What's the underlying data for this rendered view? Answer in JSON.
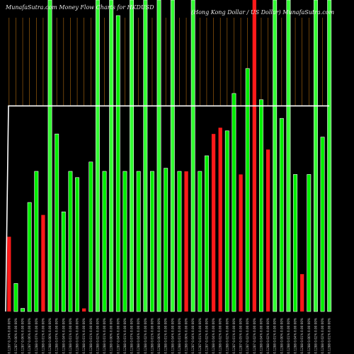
{
  "header": {
    "left_title": "MunafaSutra.com Money Flow Charts for HKDUSD",
    "right_title": "(Hong Kong Dollar / US Dollar) MunafaSutra.com"
  },
  "colors": {
    "background": "#000000",
    "up": "#00ee00",
    "up_highlight": "#33ff33",
    "down": "#ff1a1a",
    "price_line": "#ffffff",
    "grid_line": "#b06a10"
  },
  "chart_data": {
    "type": "bar",
    "title": "",
    "xlabel": "",
    "ylabel": "",
    "ylim": [
      0,
      100
    ],
    "categories": [
      "0.1287 0.24% 0.00 00%",
      "0.1287 0.00% 0.00 00%",
      "0.1287 0.06% 0.00 00%",
      "0.1287 0.06% 0.00 00%",
      "0.1288 0.07% 0.00 00%",
      "0.1288 0.01% 0.00 00%",
      "0.1288 0.00% 0.00 00%",
      "0.1288 0.07% 0.00 00%",
      "0.1288 0.04% 0.00 00%",
      "0.1288 0.01% 0.00 00%",
      "0.1288 0.02% 0.00 00%",
      "0.1288 0.01% 0.00 00%",
      "0.1288 0.01% 0.00 00%",
      "0.1288 0.02% 0.00 00%",
      "0.1288 0.01% 0.00 00%",
      "0.1288 0.00% 0.00 00%",
      "0.1287 0.04% 0.00 00%",
      "0.1288 0.01% 0.00 00%",
      "0.1288 0.07% 0.00 00%",
      "0.1288 0.04% 0.00 00%",
      "0.1288 0.02% 0.00 00%",
      "0.1288 0.01% 0.00 00%",
      "0.1288 0.00% 0.00 00%",
      "0.1288 0.01% 0.00 00%",
      "0.1288 0.04% 0.00 00%",
      "0.1288 0.01% 0.00 00%",
      "0.1288 0.00% 0.00 00%",
      "0.1287 0.04% 0.00 00%",
      "0.1287 0.01% 0.00 00%",
      "0.1287 0.02% 0.00 00%",
      "0.1288 0.04% 0.00 00%",
      "0.1288 0.02% 0.00 00%",
      "0.1288 0.02% 0.00 00%",
      "0.1287 0.01% 0.00 00%",
      "0.1287 0.05% 0.00 00%",
      "0.1287 0.02% 0.00 00%",
      "0.1287 0.02% 0.00 00%",
      "0.1288 0.04% 0.00 00%",
      "0.1288 0.02% 0.00 00%",
      "0.1288 0.01% 0.00 00%",
      "0.1288 0.00% 0.00 00%",
      "0.1288 0.01% 0.00 00%",
      "0.1288 0.04% 0.00 00%",
      "0.1288 0.01% 0.00 00%",
      "0.1288 0.00% 0.00 00%",
      "0.1288 0.02% 0.00 00%",
      "0.1288 0.02% 0.00 00%",
      "0.1288 0.01% 0.00 00%"
    ],
    "colors": [
      "red",
      "green",
      "green",
      "green",
      "green",
      "red",
      "green",
      "green",
      "green",
      "green",
      "green",
      "red",
      "green",
      "green",
      "green",
      "green",
      "green",
      "green",
      "green",
      "green",
      "green",
      "green",
      "green",
      "green",
      "green",
      "green",
      "red",
      "green",
      "green",
      "green",
      "red",
      "red",
      "green",
      "green",
      "red",
      "green",
      "red",
      "green",
      "red",
      "green",
      "green",
      "green",
      "green",
      "red",
      "green",
      "green",
      "green",
      "green"
    ],
    "values": [
      24,
      9,
      1,
      35,
      45,
      31,
      45,
      57,
      32,
      45,
      43,
      1,
      48,
      45,
      45,
      42,
      95,
      45,
      45,
      45,
      45,
      45,
      45,
      46,
      45,
      45,
      45,
      45,
      45,
      50,
      57,
      59,
      58,
      70,
      44,
      78,
      44,
      68,
      52,
      49,
      62,
      48,
      44,
      12,
      44,
      43,
      56,
      6
    ],
    "tall": [
      false,
      false,
      false,
      false,
      false,
      false,
      true,
      false,
      false,
      false,
      false,
      false,
      false,
      true,
      false,
      true,
      false,
      false,
      true,
      false,
      true,
      false,
      true,
      false,
      true,
      false,
      false,
      true,
      false,
      false,
      false,
      false,
      false,
      false,
      false,
      false,
      true,
      false,
      false,
      true,
      false,
      true,
      false,
      false,
      false,
      true,
      false,
      true
    ],
    "price_line": [
      66,
      66,
      66,
      66,
      66,
      66,
      66,
      66,
      66,
      66,
      66,
      66,
      66,
      66,
      66,
      66,
      66,
      66,
      66,
      66,
      66,
      66,
      66,
      66,
      66,
      66,
      66,
      66,
      66,
      66,
      66,
      66,
      66,
      66,
      66,
      66,
      66,
      66,
      66,
      66,
      66,
      66,
      66,
      66,
      66,
      66,
      66,
      66
    ]
  }
}
